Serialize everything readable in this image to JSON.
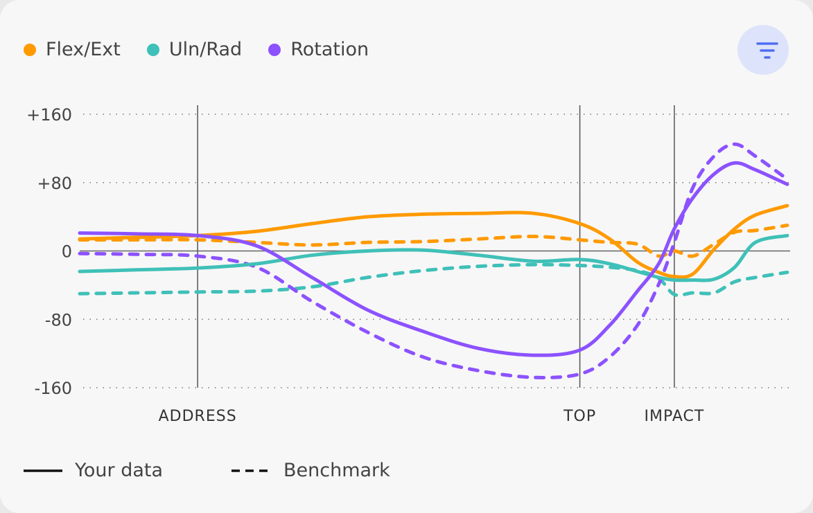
{
  "filter_button": {
    "icon": "filter-icon",
    "color": "#4f6ef0"
  },
  "chart_data": {
    "type": "line",
    "legend": [
      {
        "name": "Flex/Ext",
        "color": "#ff9a00"
      },
      {
        "name": "Uln/Rad",
        "color": "#3fc0b8"
      },
      {
        "name": "Rotation",
        "color": "#8c52ff"
      }
    ],
    "style_legend": [
      {
        "label": "Your data",
        "style": "solid"
      },
      {
        "label": "Benchmark",
        "style": "dashed"
      }
    ],
    "ylim": [
      -160,
      160
    ],
    "yticks": [
      {
        "v": 160,
        "label": "+160"
      },
      {
        "v": 80,
        "label": "+80"
      },
      {
        "v": 0,
        "label": "0"
      },
      {
        "v": -80,
        "label": "-80"
      },
      {
        "v": -160,
        "label": "-160"
      }
    ],
    "xlim": [
      0,
      100
    ],
    "events": [
      {
        "x": 16.6,
        "label": "ADDRESS"
      },
      {
        "x": 70.4,
        "label": "TOP"
      },
      {
        "x": 83.7,
        "label": "IMPACT"
      }
    ],
    "x": [
      0,
      8.3,
      16.6,
      24.9,
      32.7,
      40.5,
      48.3,
      56.1,
      63.9,
      70.4,
      74.6,
      78.5,
      81.5,
      83.7,
      86.3,
      89.3,
      92.2,
      95.1,
      99.6
    ],
    "series": [
      {
        "name": "Flex/Ext",
        "kind": "Your data",
        "color": "#ff9a00",
        "dashed": false,
        "values": [
          14,
          16,
          18,
          23,
          32,
          40,
          43,
          44,
          44,
          32,
          14,
          -13,
          -25,
          -30,
          -27,
          2,
          26,
          42,
          53
        ]
      },
      {
        "name": "Flex/Ext",
        "kind": "Benchmark",
        "color": "#ff9a00",
        "dashed": true,
        "values": [
          13,
          13,
          13,
          10,
          7,
          10,
          11,
          14,
          17,
          13,
          10,
          8,
          -6,
          0,
          -6,
          8,
          22,
          24,
          30
        ]
      },
      {
        "name": "Uln/Rad",
        "kind": "Your data",
        "color": "#3fc0b8",
        "dashed": false,
        "values": [
          -24,
          -22,
          -20,
          -15,
          -5,
          0,
          1,
          -5,
          -12,
          -10,
          -15,
          -24,
          -31,
          -34,
          -34,
          -33,
          -19,
          10,
          18
        ]
      },
      {
        "name": "Uln/Rad",
        "kind": "Benchmark",
        "color": "#3fc0b8",
        "dashed": true,
        "values": [
          -50,
          -49,
          -48,
          -47,
          -42,
          -31,
          -23,
          -18,
          -16,
          -17,
          -19,
          -23,
          -32,
          -51,
          -49,
          -49,
          -36,
          -31,
          -25
        ]
      },
      {
        "name": "Rotation",
        "kind": "Your data",
        "color": "#8c52ff",
        "dashed": false,
        "values": [
          21,
          20,
          18,
          6,
          -31,
          -69,
          -94,
          -114,
          -122,
          -116,
          -87,
          -47,
          -15,
          26,
          62,
          90,
          103,
          95,
          78
        ]
      },
      {
        "name": "Rotation",
        "kind": "Benchmark",
        "color": "#8c52ff",
        "dashed": true,
        "values": [
          -3,
          -4,
          -6,
          -19,
          -59,
          -95,
          -124,
          -140,
          -148,
          -144,
          -124,
          -87,
          -39,
          10,
          74,
          111,
          125,
          111,
          84
        ]
      }
    ]
  }
}
